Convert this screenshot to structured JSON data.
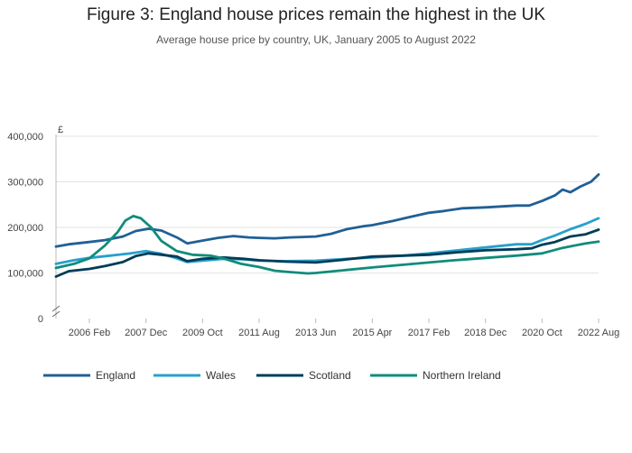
{
  "chart_data": {
    "type": "line",
    "title": "Figure 3: England house prices remain the highest in the UK",
    "subtitle": "Average house price by country, UK, January 2005 to August 2022",
    "ylabel": "£",
    "ylim": [
      0,
      400000
    ],
    "yticks": [
      {
        "value": 0,
        "label": "0"
      },
      {
        "value": 100000,
        "label": "100,000"
      },
      {
        "value": 200000,
        "label": "200,000"
      },
      {
        "value": 300000,
        "label": "300,000"
      },
      {
        "value": 400000,
        "label": "400,000"
      }
    ],
    "xlim": [
      "2005-01",
      "2022-08"
    ],
    "xticks": [
      "2006 Feb",
      "2007 Dec",
      "2009 Oct",
      "2011 Aug",
      "2013 Jun",
      "2015 Apr",
      "2017 Feb",
      "2018 Dec",
      "2020 Oct",
      "2022 Aug"
    ],
    "grid": "horizontal",
    "legend_position": "bottom",
    "series": [
      {
        "name": "England",
        "color": "#206095",
        "points": [
          [
            "2005-01",
            158000
          ],
          [
            "2005-06",
            163000
          ],
          [
            "2006-02",
            168000
          ],
          [
            "2006-08",
            172000
          ],
          [
            "2007-03",
            180000
          ],
          [
            "2007-08",
            192000
          ],
          [
            "2008-01",
            197000
          ],
          [
            "2008-06",
            193000
          ],
          [
            "2008-12",
            178000
          ],
          [
            "2009-04",
            165000
          ],
          [
            "2009-10",
            171000
          ],
          [
            "2010-04",
            177000
          ],
          [
            "2010-10",
            181000
          ],
          [
            "2011-04",
            178000
          ],
          [
            "2011-08",
            177000
          ],
          [
            "2012-02",
            176000
          ],
          [
            "2012-08",
            178000
          ],
          [
            "2013-06",
            180000
          ],
          [
            "2013-12",
            186000
          ],
          [
            "2014-06",
            196000
          ],
          [
            "2015-01",
            203000
          ],
          [
            "2015-04",
            205000
          ],
          [
            "2015-12",
            214000
          ],
          [
            "2016-06",
            222000
          ],
          [
            "2017-02",
            232000
          ],
          [
            "2017-08",
            236000
          ],
          [
            "2018-03",
            242000
          ],
          [
            "2018-12",
            244000
          ],
          [
            "2019-06",
            246000
          ],
          [
            "2019-12",
            248000
          ],
          [
            "2020-05",
            248000
          ],
          [
            "2020-10",
            258000
          ],
          [
            "2021-03",
            270000
          ],
          [
            "2021-06",
            283000
          ],
          [
            "2021-09",
            277000
          ],
          [
            "2022-01",
            290000
          ],
          [
            "2022-05",
            300000
          ],
          [
            "2022-08",
            316000
          ]
        ]
      },
      {
        "name": "Wales",
        "color": "#27a0cc",
        "points": [
          [
            "2005-01",
            120000
          ],
          [
            "2005-08",
            128000
          ],
          [
            "2006-02",
            133000
          ],
          [
            "2006-10",
            138000
          ],
          [
            "2007-06",
            143000
          ],
          [
            "2007-12",
            148000
          ],
          [
            "2008-06",
            142000
          ],
          [
            "2008-12",
            132000
          ],
          [
            "2009-04",
            124000
          ],
          [
            "2009-10",
            127000
          ],
          [
            "2010-06",
            131000
          ],
          [
            "2011-02",
            130000
          ],
          [
            "2011-08",
            127000
          ],
          [
            "2012-06",
            126000
          ],
          [
            "2013-06",
            127000
          ],
          [
            "2014-03",
            130000
          ],
          [
            "2015-04",
            134000
          ],
          [
            "2016-04",
            138000
          ],
          [
            "2017-02",
            143000
          ],
          [
            "2017-12",
            149000
          ],
          [
            "2018-12",
            156000
          ],
          [
            "2019-12",
            163000
          ],
          [
            "2020-06",
            163000
          ],
          [
            "2020-10",
            172000
          ],
          [
            "2021-03",
            182000
          ],
          [
            "2021-09",
            196000
          ],
          [
            "2022-03",
            208000
          ],
          [
            "2022-08",
            220000
          ]
        ]
      },
      {
        "name": "Scotland",
        "color": "#003c57",
        "points": [
          [
            "2005-01",
            92000
          ],
          [
            "2005-06",
            104000
          ],
          [
            "2006-02",
            109000
          ],
          [
            "2006-08",
            115000
          ],
          [
            "2007-03",
            124000
          ],
          [
            "2007-08",
            137000
          ],
          [
            "2008-01",
            143000
          ],
          [
            "2008-06",
            140000
          ],
          [
            "2008-12",
            136000
          ],
          [
            "2009-04",
            126000
          ],
          [
            "2009-10",
            131000
          ],
          [
            "2010-06",
            134000
          ],
          [
            "2011-02",
            131000
          ],
          [
            "2011-08",
            128000
          ],
          [
            "2012-06",
            125000
          ],
          [
            "2013-06",
            123000
          ],
          [
            "2014-03",
            128000
          ],
          [
            "2015-04",
            136000
          ],
          [
            "2016-04",
            138000
          ],
          [
            "2017-02",
            140000
          ],
          [
            "2017-12",
            145000
          ],
          [
            "2018-12",
            150000
          ],
          [
            "2019-12",
            152000
          ],
          [
            "2020-06",
            154000
          ],
          [
            "2020-10",
            162000
          ],
          [
            "2021-03",
            168000
          ],
          [
            "2021-09",
            180000
          ],
          [
            "2022-03",
            185000
          ],
          [
            "2022-08",
            195000
          ]
        ]
      },
      {
        "name": "Northern Ireland",
        "color": "#118c7b",
        "points": [
          [
            "2005-01",
            111000
          ],
          [
            "2005-08",
            120000
          ],
          [
            "2006-02",
            132000
          ],
          [
            "2006-08",
            160000
          ],
          [
            "2007-01",
            190000
          ],
          [
            "2007-04",
            215000
          ],
          [
            "2007-07",
            225000
          ],
          [
            "2007-10",
            220000
          ],
          [
            "2008-02",
            200000
          ],
          [
            "2008-06",
            170000
          ],
          [
            "2008-12",
            148000
          ],
          [
            "2009-06",
            140000
          ],
          [
            "2010-01",
            138000
          ],
          [
            "2010-06",
            132000
          ],
          [
            "2011-01",
            120000
          ],
          [
            "2011-08",
            113000
          ],
          [
            "2012-02",
            105000
          ],
          [
            "2012-08",
            102000
          ],
          [
            "2013-03",
            99000
          ],
          [
            "2013-06",
            100000
          ],
          [
            "2014-03",
            105000
          ],
          [
            "2015-04",
            112000
          ],
          [
            "2016-04",
            118000
          ],
          [
            "2017-02",
            123000
          ],
          [
            "2017-12",
            128000
          ],
          [
            "2018-12",
            133000
          ],
          [
            "2019-12",
            138000
          ],
          [
            "2020-10",
            143000
          ],
          [
            "2021-06",
            155000
          ],
          [
            "2022-03",
            165000
          ],
          [
            "2022-08",
            169000
          ]
        ]
      }
    ]
  }
}
